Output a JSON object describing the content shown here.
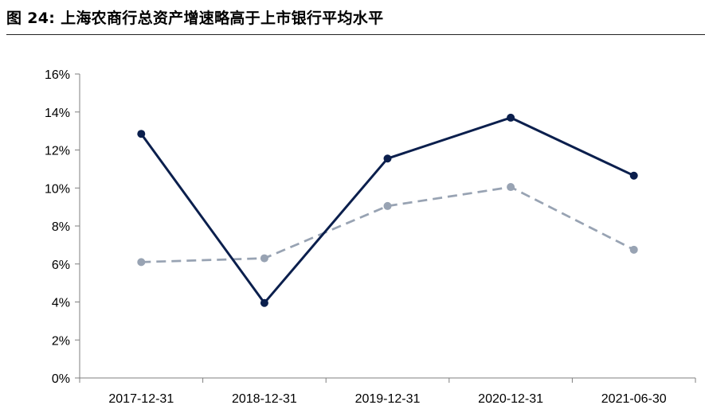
{
  "figure": {
    "title": "图 24:  上海农商行总资产增速略高于上市银行平均水平"
  },
  "chart_data": {
    "type": "line",
    "categories": [
      "2017-12-31",
      "2018-12-31",
      "2019-12-31",
      "2020-12-31",
      "2021-06-30"
    ],
    "series": [
      {
        "values": [
          12.85,
          3.95,
          11.55,
          13.7,
          10.65
        ],
        "color": "#0b1f4d",
        "style": "solid",
        "marker": "circle"
      },
      {
        "values": [
          6.1,
          6.3,
          9.05,
          10.05,
          6.75
        ],
        "color": "#98a3b3",
        "style": "dashed",
        "marker": "circle"
      }
    ],
    "ylim": [
      0,
      16
    ],
    "yticks": [
      0,
      2,
      4,
      6,
      8,
      10,
      12,
      14,
      16
    ],
    "ytick_format": "percent",
    "ytick_labels": [
      "0%",
      "2%",
      "4%",
      "6%",
      "8%",
      "10%",
      "12%",
      "14%",
      "16%"
    ],
    "grid": false,
    "legend": "none"
  }
}
